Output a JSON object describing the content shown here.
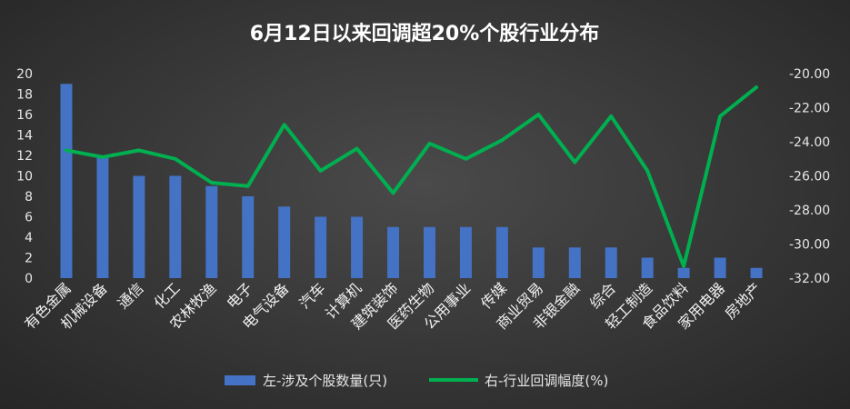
{
  "chart_data": {
    "type": "bar",
    "title": "6月12日以来回调超20%个股行业分布",
    "categories": [
      "有色金属",
      "机械设备",
      "通信",
      "化工",
      "农林牧渔",
      "电子",
      "电气设备",
      "汽车",
      "计算机",
      "建筑装饰",
      "医药生物",
      "公用事业",
      "传媒",
      "商业贸易",
      "非银金融",
      "综合",
      "轻工制造",
      "食品饮料",
      "家用电器",
      "房地产"
    ],
    "series": [
      {
        "name": "左-涉及个股数量(只)",
        "type": "bar",
        "axis": "left",
        "color": "#4472c4",
        "values": [
          19,
          12,
          10,
          10,
          9,
          8,
          7,
          6,
          6,
          5,
          5,
          5,
          5,
          3,
          3,
          3,
          2,
          1,
          2,
          1
        ]
      },
      {
        "name": "右-行业回调幅度(%)",
        "type": "line",
        "axis": "right",
        "color": "#00b050",
        "values": [
          -24.5,
          -24.9,
          -24.5,
          -25.0,
          -26.4,
          -26.6,
          -23.0,
          -25.7,
          -24.4,
          -27.0,
          -24.1,
          -25.0,
          -23.9,
          -22.4,
          -25.2,
          -22.5,
          -25.7,
          -31.3,
          -22.5,
          -20.8
        ]
      }
    ],
    "left_axis": {
      "min": 0,
      "max": 20,
      "ticks": [
        "0",
        "2",
        "4",
        "6",
        "8",
        "10",
        "12",
        "14",
        "16",
        "18",
        "20"
      ]
    },
    "right_axis": {
      "min": -32,
      "max": -20,
      "ticks": [
        "-32.00",
        "-30.00",
        "-28.00",
        "-26.00",
        "-24.00",
        "-22.00",
        "-20.00"
      ]
    },
    "grid": false,
    "legend_position": "bottom"
  }
}
